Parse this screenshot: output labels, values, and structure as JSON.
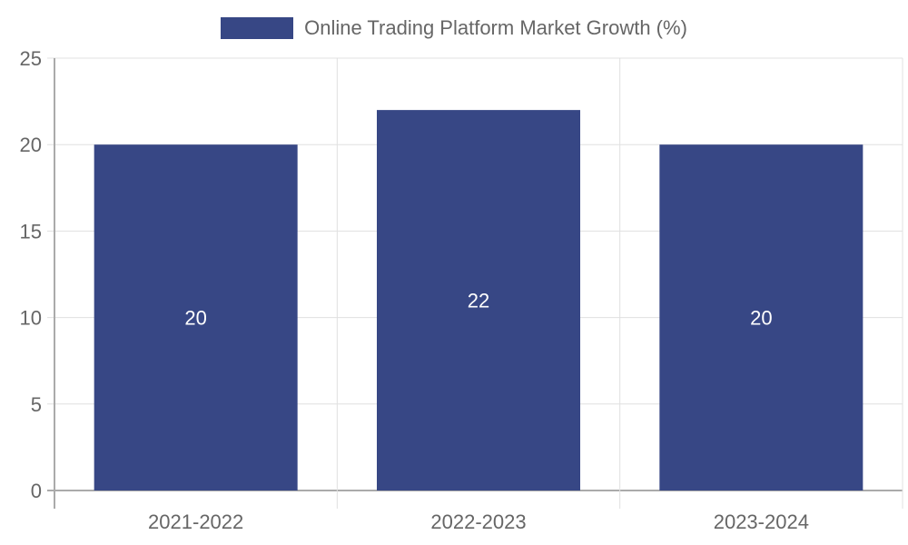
{
  "legend": {
    "label": "Online Trading Platform Market Growth (%)",
    "color": "#374785"
  },
  "chart_data": {
    "type": "bar",
    "title": "",
    "categories": [
      "2021-2022",
      "2022-2023",
      "2023-2024"
    ],
    "series": [
      {
        "name": "Online Trading Platform Market Growth (%)",
        "values": [
          20,
          22,
          20
        ],
        "color": "#374785"
      }
    ],
    "values": [
      20,
      22,
      20
    ],
    "xlabel": "",
    "ylabel": "",
    "ylim": [
      0,
      25
    ],
    "yticks": [
      0,
      5,
      10,
      15,
      20,
      25
    ],
    "grid": true,
    "legend_position": "top",
    "data_labels": [
      "20",
      "22",
      "20"
    ]
  }
}
